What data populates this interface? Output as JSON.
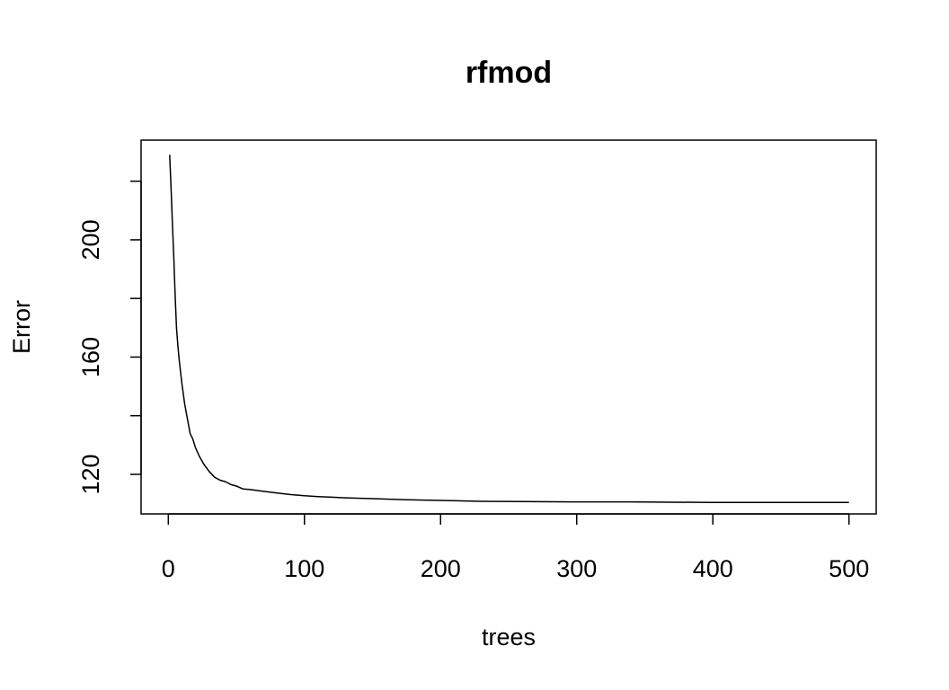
{
  "chart_data": {
    "type": "line",
    "title": "rfmod",
    "xlabel": "trees",
    "ylabel": "Error",
    "xlim": [
      -20,
      520
    ],
    "ylim": [
      106.5,
      234
    ],
    "x_ticks": [
      0,
      100,
      200,
      300,
      400,
      500
    ],
    "x_tick_labels": [
      "0",
      "100",
      "200",
      "300",
      "400",
      "500"
    ],
    "y_ticks": [
      120,
      140,
      160,
      180,
      200,
      220
    ],
    "y_tick_labels": [
      "120",
      "",
      "160",
      "",
      "200",
      ""
    ],
    "grid": false,
    "legend": "none",
    "series": [
      {
        "color": "#000000",
        "x": [
          1,
          2,
          3,
          4,
          5,
          6,
          7,
          8,
          10,
          12,
          14,
          16,
          18,
          20,
          23,
          26,
          30,
          34,
          38,
          42,
          46,
          50,
          55,
          60,
          70,
          80,
          90,
          100,
          110,
          120,
          130,
          150,
          175,
          200,
          230,
          260,
          300,
          340,
          400,
          450,
          500
        ],
        "y": [
          229,
          218,
          206,
          194,
          181,
          170,
          164,
          159,
          151,
          144,
          139,
          134,
          132,
          129,
          126,
          123.5,
          121,
          119,
          118,
          117.5,
          116.5,
          116,
          115,
          114.8,
          114.2,
          113.6,
          113.1,
          112.7,
          112.4,
          112.2,
          112.0,
          111.7,
          111.3,
          111.1,
          110.8,
          110.7,
          110.6,
          110.6,
          110.4,
          110.4,
          110.4
        ]
      }
    ]
  }
}
